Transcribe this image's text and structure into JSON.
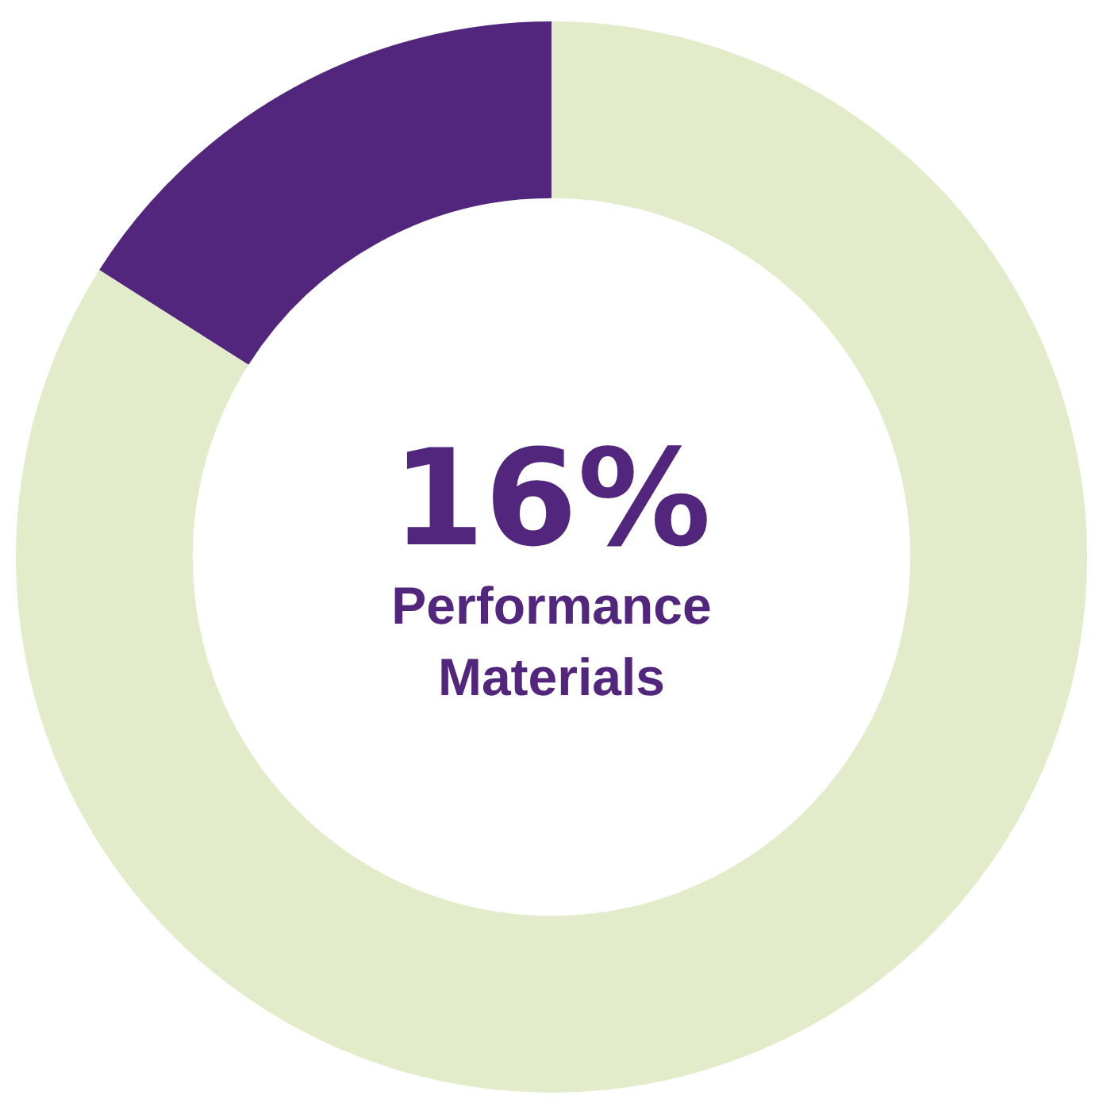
{
  "chart_data": {
    "type": "donut",
    "categories": [
      "Performance Materials",
      null
    ],
    "values": [
      16,
      84
    ],
    "colors": [
      "#52267c",
      "#e2ecca"
    ],
    "value_labels": [
      "16%",
      null
    ],
    "legend": false
  }
}
